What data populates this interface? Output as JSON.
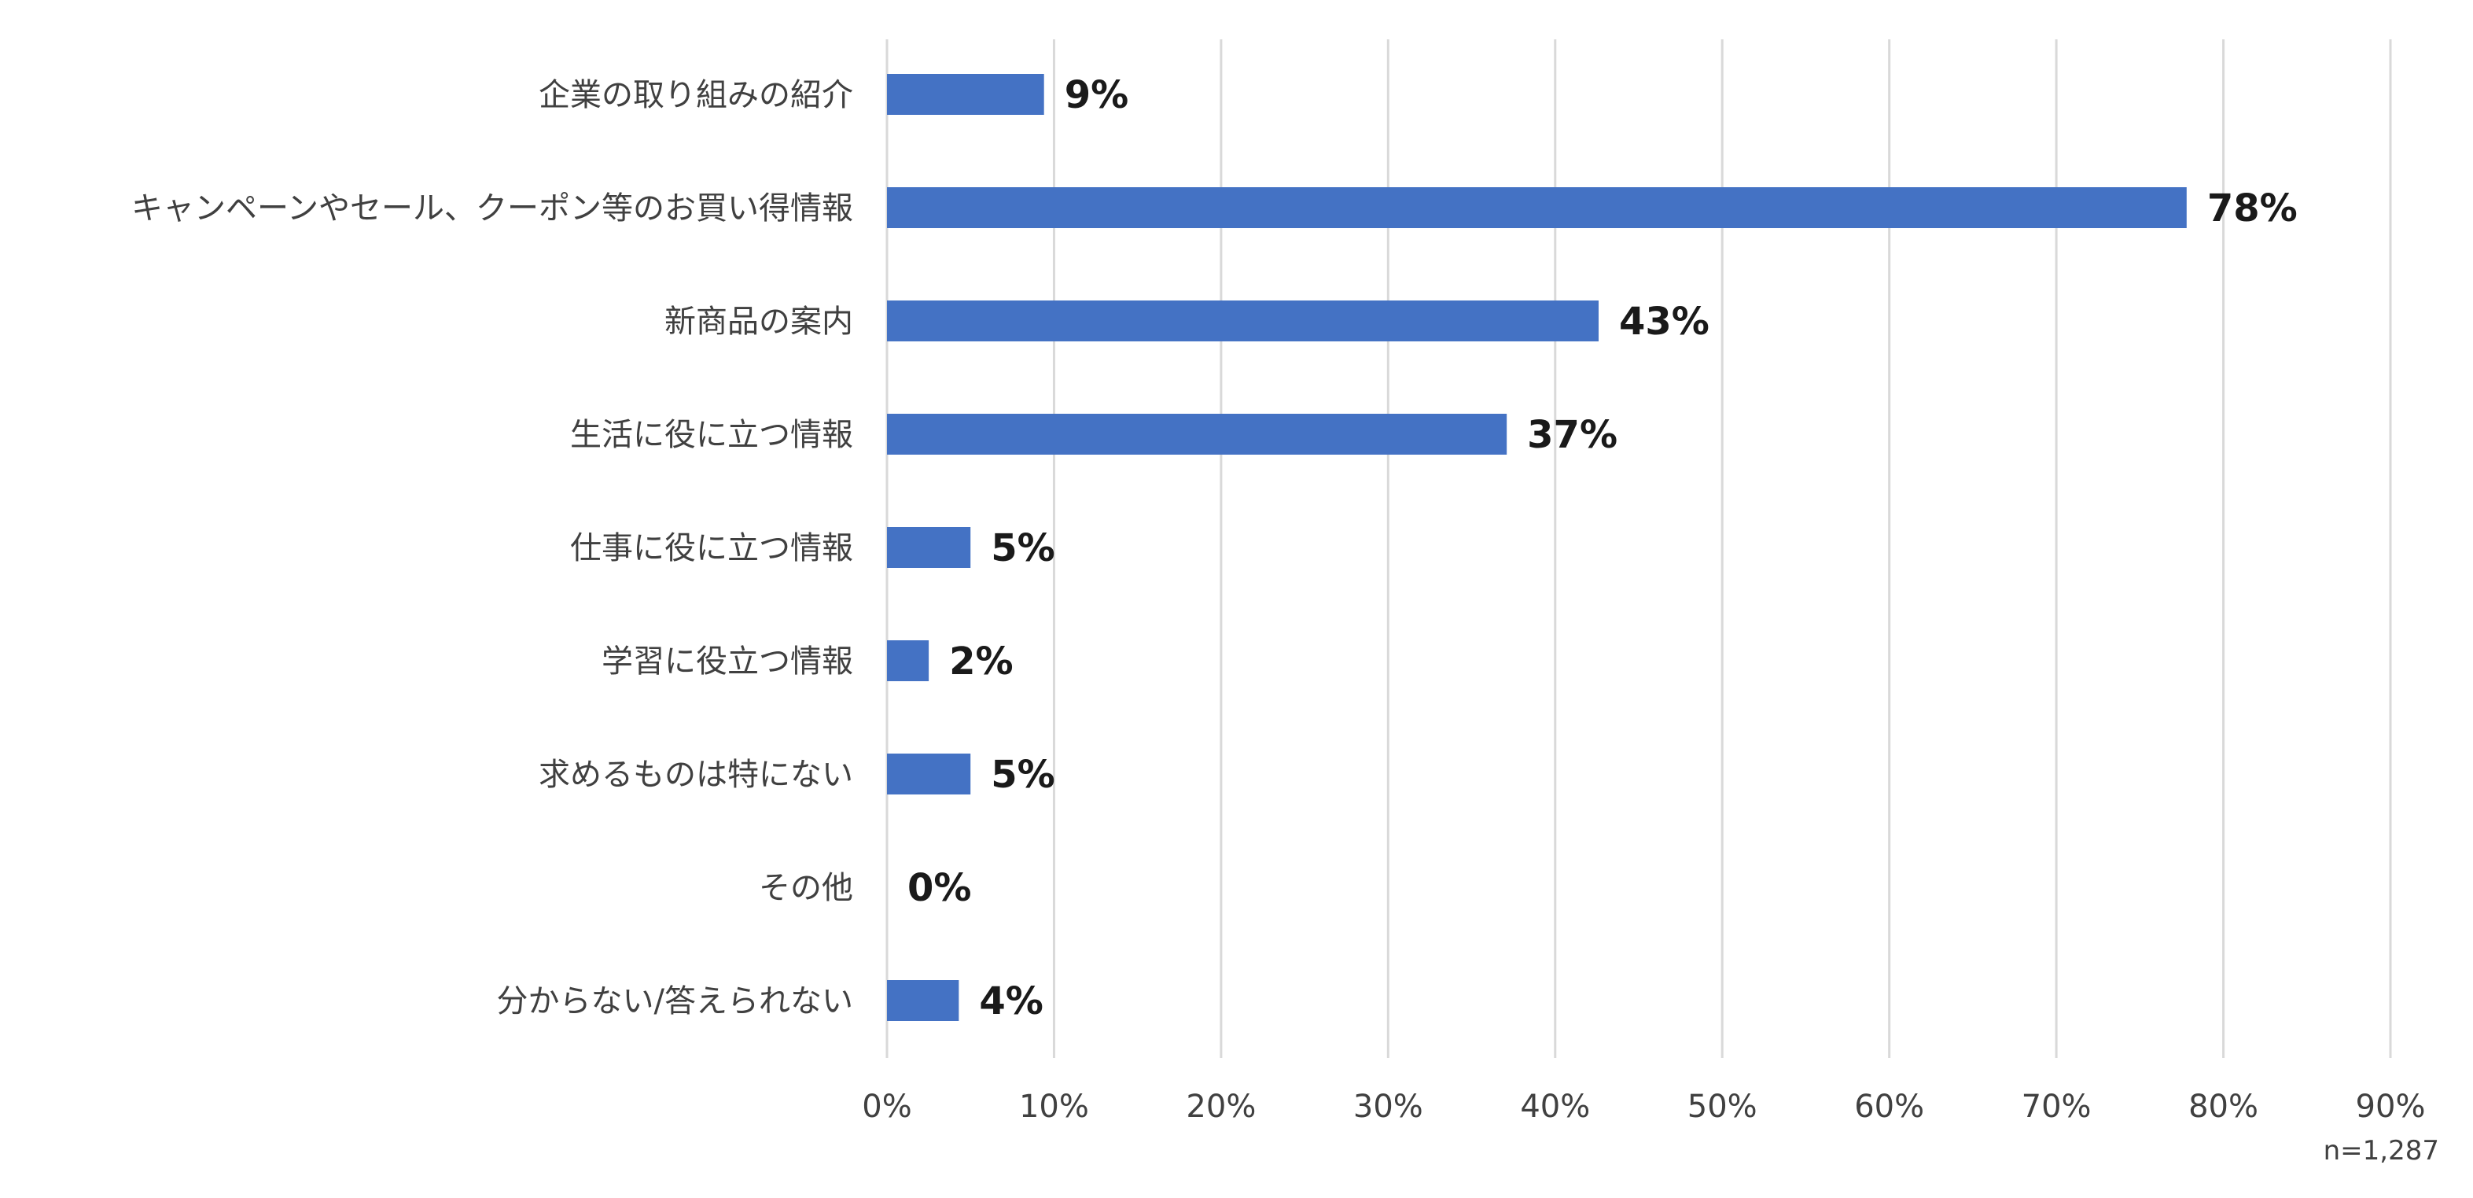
{
  "chart_data": {
    "type": "bar",
    "orientation": "horizontal",
    "title": "",
    "xlabel": "",
    "ylabel": "",
    "categories": [
      "企業の取り組みの紹介",
      "キャンペーンやセール、クーポン等のお買い得情報",
      "新商品の案内",
      "生活に役に立つ情報",
      "仕事に役に立つ情報",
      "学習に役立つ情報",
      "求めるものは特にない",
      "その他",
      "分からない/答えられない"
    ],
    "values": [
      9.4,
      77.8,
      42.6,
      37.1,
      5.0,
      2.5,
      5.0,
      0.0,
      4.3
    ],
    "data_labels": [
      "9%",
      "78%",
      "43%",
      "37%",
      "5%",
      "2%",
      "5%",
      "0%",
      "4%"
    ],
    "xlim": [
      0,
      90
    ],
    "x_ticks": [
      0,
      10,
      20,
      30,
      40,
      50,
      60,
      70,
      80,
      90
    ],
    "x_tick_labels": [
      "0%",
      "10%",
      "20%",
      "30%",
      "40%",
      "50%",
      "60%",
      "70%",
      "80%",
      "90%"
    ],
    "grid": true,
    "legend": "none",
    "bar_color": "#4472C4",
    "note": "n=1,287"
  }
}
